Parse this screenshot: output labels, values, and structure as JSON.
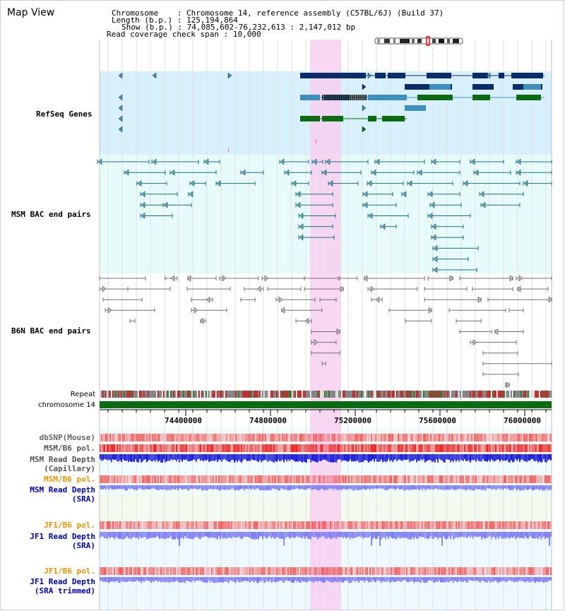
{
  "view_title": "Map View",
  "header": {
    "chromosome_key": "Chromosome",
    "chromosome_value": "Chromosome 14, reference assembly (C57BL/6J) (Build 37)",
    "length_key": "Length (b.p.)",
    "length_value": "125,194,864",
    "show_key": "Show (b.p.)",
    "show_value": "74,085,602-76,232,613 : 2,147,012 bp",
    "coverage_key": "Read coverage check span",
    "coverage_value": "10,000"
  },
  "tracks": {
    "refseq": "RefSeq Genes",
    "msm_bac": "MSM BAC end pairs",
    "b6n_bac": "B6N BAC end pairs",
    "repeat": "Repeat",
    "chromosome": "chromosome 14",
    "dbsnp": "dbSNP(Mouse)",
    "msm_b6_pol": "MSM/B6 pol.",
    "msm_depth_cap_1": "MSM Read Depth",
    "msm_depth_cap_2": "(Capillary)",
    "msm_b6_pol_2": "MSM/B6 pol.",
    "msm_depth_sra_1": "MSM Read Depth",
    "msm_depth_sra_2": "(SRA)",
    "jf1_b6_pol": "JF1/B6 pol.",
    "jf1_depth_sra_1": "JF1 Read Depth",
    "jf1_depth_sra_2": "(SRA)",
    "jf1_b6_pol_2": "JF1/B6 pol.",
    "jf1_depth_trim_1": "JF1 Read Depth",
    "jf1_depth_trim_2": "(SRA trimmed)"
  },
  "axis": {
    "ticks": [
      "74400000",
      "74800000",
      "75200000",
      "75600000",
      "76000000"
    ]
  },
  "colors": {
    "refseq_bg": "#d8f0fb",
    "msm_bg": "#e8fbfb",
    "highlight": "#f7d0f0",
    "refseq_label": "#00008b",
    "msm_label": "#006b7a",
    "b6n_label": "#505050",
    "orange_label": "#e69500",
    "blue_label": "#0000aa",
    "gene_dark": "#0a2c6b",
    "gene_light": "#3f8fbd",
    "gene_green": "#0a6b12",
    "chrom_green": "#0a6b12",
    "depth_blue": "#1a1ae0",
    "depth_light": "#7d7dff"
  }
}
